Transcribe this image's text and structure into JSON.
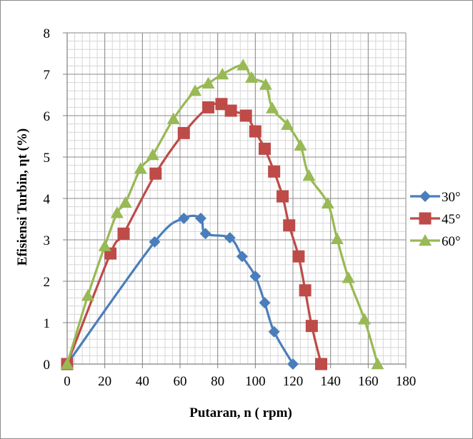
{
  "chart_data": {
    "type": "line",
    "title": "",
    "xlabel": "Putaran, n ( rpm)",
    "ylabel": "Efisiensi Turbin, ηt (%)",
    "xlim": [
      0,
      180
    ],
    "ylim": [
      0,
      8
    ],
    "x_ticks": [
      0,
      20,
      40,
      60,
      80,
      100,
      120,
      140,
      160,
      180
    ],
    "y_ticks": [
      0,
      1,
      2,
      3,
      4,
      5,
      6,
      7,
      8
    ],
    "x_tick_labels": [
      "0",
      "20",
      "40",
      "60",
      "80",
      "100",
      "120",
      "140",
      "160",
      "180"
    ],
    "y_tick_labels": [
      "0",
      "1",
      "2",
      "3",
      "4",
      "5",
      "6",
      "7",
      "8"
    ],
    "grid": true,
    "minor_grid": true,
    "smooth": true,
    "legend_position": "right",
    "series": [
      {
        "name": "30°",
        "color": "#4a7ebb",
        "marker": "diamond",
        "x": [
          0,
          46.5,
          62,
          71,
          73.5,
          86.5,
          93,
          100,
          105,
          110,
          120
        ],
        "y": [
          0,
          2.95,
          3.52,
          3.52,
          3.15,
          3.05,
          2.6,
          2.12,
          1.48,
          0.78,
          0
        ]
      },
      {
        "name": "45°",
        "color": "#be4b48",
        "marker": "square",
        "x": [
          0,
          23,
          30,
          47,
          62,
          75,
          82,
          87,
          95,
          100,
          105,
          110,
          114.5,
          118,
          123,
          126.5,
          130,
          135
        ],
        "y": [
          0,
          2.67,
          3.15,
          4.6,
          5.58,
          6.2,
          6.28,
          6.12,
          6.0,
          5.62,
          5.2,
          4.65,
          4.05,
          3.35,
          2.6,
          1.78,
          0.92,
          0
        ]
      },
      {
        "name": "60°",
        "color": "#98b954",
        "marker": "triangle",
        "x": [
          0,
          11,
          20,
          26.5,
          31,
          39,
          45.5,
          56.5,
          68,
          75,
          82.5,
          93.5,
          98,
          105.5,
          109,
          117,
          124,
          128.5,
          138.5,
          143.5,
          149.5,
          158,
          165
        ],
        "y": [
          0,
          1.65,
          2.85,
          3.65,
          3.9,
          4.72,
          5.05,
          5.92,
          6.6,
          6.78,
          7.0,
          7.22,
          6.92,
          6.75,
          6.18,
          5.78,
          5.28,
          4.55,
          3.88,
          3.02,
          2.08,
          1.08,
          0
        ]
      }
    ]
  }
}
